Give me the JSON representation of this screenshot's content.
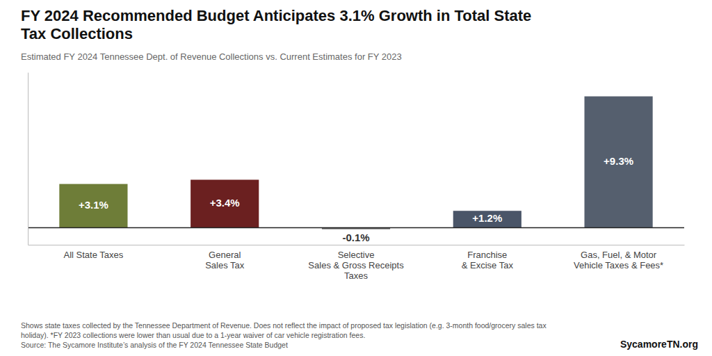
{
  "chart_data": {
    "type": "bar",
    "title": "FY 2024 Recommended Budget Anticipates 3.1% Growth in Total State\nTax Collections",
    "subtitle": "Estimated FY 2024 Tennessee Dept. of Revenue Collections vs. Current Estimates for FY 2023",
    "categories": [
      "All State Taxes",
      "General\nSales Tax",
      "Selective\nSales & Gross Receipts\nTaxes",
      "Franchise\n& Excise Tax",
      "Gas, Fuel, & Motor\nVehicle Taxes & Fees*"
    ],
    "values": [
      3.1,
      3.4,
      -0.1,
      1.2,
      9.3
    ],
    "value_labels": [
      "+3.1%",
      "+3.4%",
      "-0.1%",
      "+1.2%",
      "+9.3%"
    ],
    "colors": [
      "#6e7d38",
      "#6b2020",
      "#666666",
      "#4a5568",
      "#555f6e"
    ],
    "data_labels": true,
    "ylim": [
      -1.2,
      11.0
    ],
    "tick_labels": "x",
    "grid": false,
    "footnotes": [
      "Shows state taxes collected by the Tennessee Department of Revenue. Does not reflect the impact of proposed tax legislation (e.g. 3-month food/grocery sales tax",
      "holiday). *FY 2023 collections were lower than usual due to a 1-year waiver of car vehicle registration fees.",
      "Source: The Sycamore Institute’s analysis of the FY 2024 Tennessee State Budget"
    ],
    "watermark": "SycamoreTN.org"
  }
}
